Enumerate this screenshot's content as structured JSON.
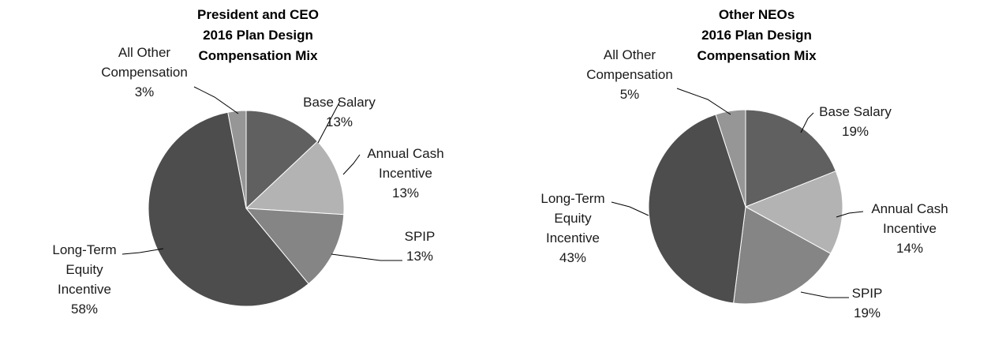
{
  "chart_data": [
    {
      "type": "pie",
      "title": [
        "President and CEO",
        "2016 Plan Design",
        "Compensation Mix"
      ],
      "slices": [
        {
          "name": "Base Salary",
          "value": 13,
          "label_lines": [
            "Base Salary"
          ],
          "value_label": "13%",
          "color": "#606060"
        },
        {
          "name": "Annual Cash Incentive",
          "value": 13,
          "label_lines": [
            "Annual Cash",
            "Incentive"
          ],
          "value_label": "13%",
          "color": "#b3b3b3"
        },
        {
          "name": "SPIP",
          "value": 13,
          "label_lines": [
            "SPIP"
          ],
          "value_label": "13%",
          "color": "#858585"
        },
        {
          "name": "Long-Term Equity Incentive",
          "value": 58,
          "label_lines": [
            "Long-Term",
            "Equity",
            "Incentive"
          ],
          "value_label": "58%",
          "color": "#4d4d4d"
        },
        {
          "name": "All Other Compensation",
          "value": 3,
          "label_lines": [
            "All Other",
            "Compensation"
          ],
          "value_label": "3%",
          "color": "#969696"
        }
      ]
    },
    {
      "type": "pie",
      "title": [
        "Other NEOs",
        "2016 Plan Design",
        "Compensation Mix"
      ],
      "slices": [
        {
          "name": "Base Salary",
          "value": 19,
          "label_lines": [
            "Base Salary"
          ],
          "value_label": "19%",
          "color": "#606060"
        },
        {
          "name": "Annual Cash Incentive",
          "value": 14,
          "label_lines": [
            "Annual Cash",
            "Incentive"
          ],
          "value_label": "14%",
          "color": "#b3b3b3"
        },
        {
          "name": "SPIP",
          "value": 19,
          "label_lines": [
            "SPIP"
          ],
          "value_label": "19%",
          "color": "#858585"
        },
        {
          "name": "Long-Term Equity Incentive",
          "value": 43,
          "label_lines": [
            "Long-Term",
            "Equity",
            "Incentive"
          ],
          "value_label": "43%",
          "color": "#4d4d4d"
        },
        {
          "name": "All Other Compensation",
          "value": 5,
          "label_lines": [
            "All Other",
            "Compensation"
          ],
          "value_label": "5%",
          "color": "#969696"
        }
      ]
    }
  ]
}
